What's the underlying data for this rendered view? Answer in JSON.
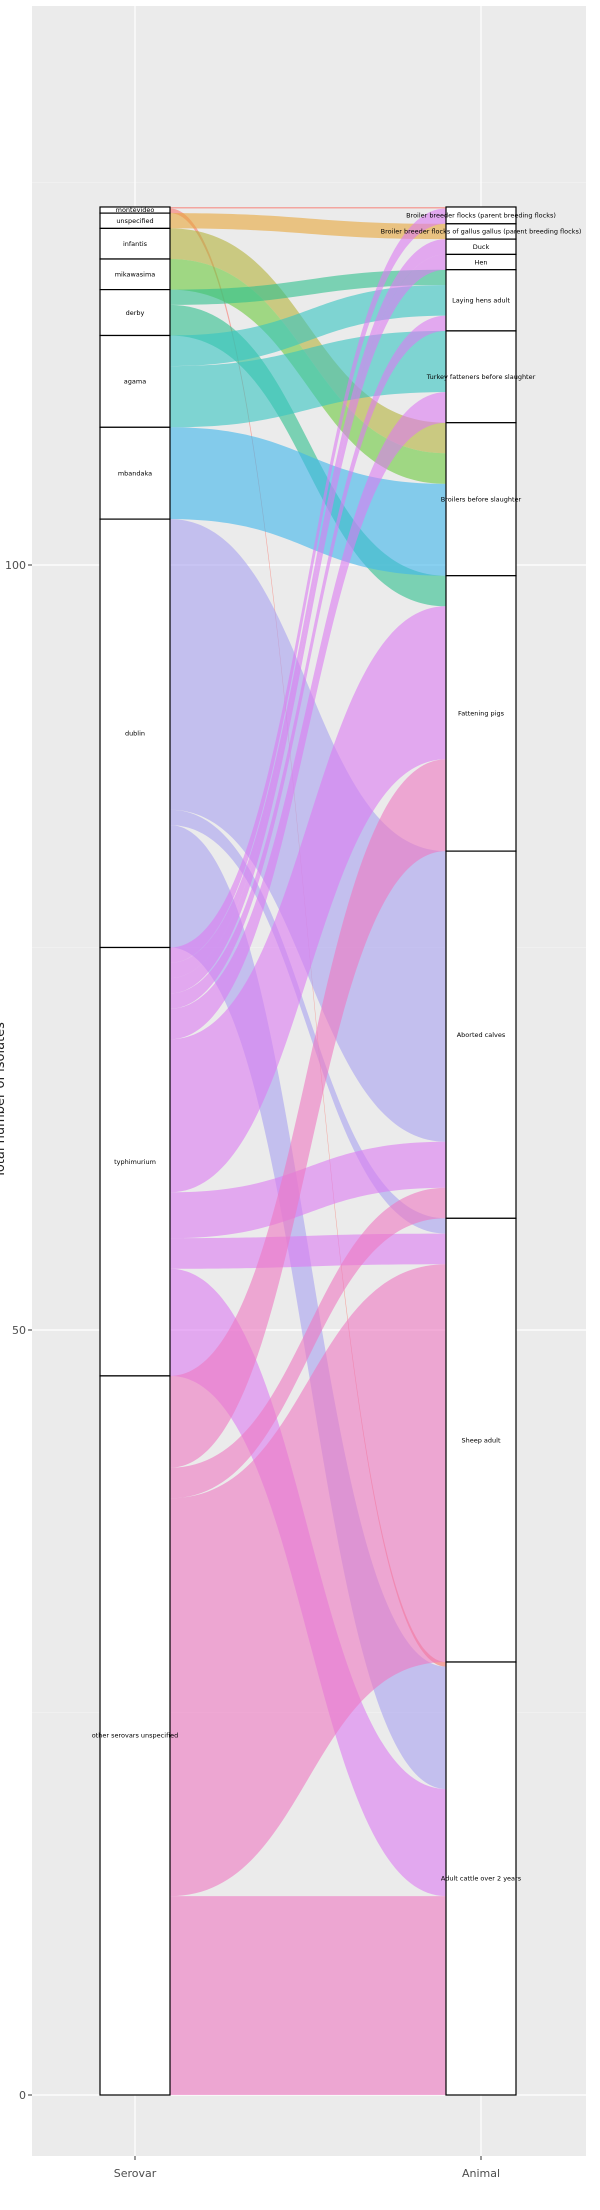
{
  "chart_data": {
    "type": "alluvial",
    "ylabel": "Total number of isolates",
    "xlabel": "",
    "ylim": [
      0,
      130
    ],
    "y_ticks": [
      0,
      50,
      100
    ],
    "x_axis_labels": [
      "Serovar",
      "Animal"
    ],
    "grid": true,
    "serovars": [
      "montevideo",
      "unspecified",
      "infantis",
      "mikawasima",
      "derby",
      "agama",
      "mbandaka",
      "dublin",
      "typhimurium",
      "other serovars unspecified"
    ],
    "animals": [
      "Broiler breeder flocks (parent breeding flocks)",
      "Broiler breeder flocks of gallus gallus (parent breeding flocks)",
      "Duck",
      "Hen",
      "Laying hens adult",
      "Turkey fatteners before slaughter",
      "Broilers before slaughter",
      "Fattening pigs",
      "Aborted calves",
      "Sheep adult",
      "Adult cattle over 2 years"
    ],
    "colors": {
      "montevideo": "#F8766D",
      "unspecified": "#E8A63A",
      "infantis": "#B4B33A",
      "mikawasima": "#6DC93E",
      "derby": "#2EC08E",
      "agama": "#36C5C2",
      "mbandaka": "#3DB5EB",
      "dublin": "#A8A2F0",
      "typhimurium": "#DC7CF2",
      "other serovars unspecified": "#EE78C2"
    },
    "flows": [
      {
        "from": "montevideo",
        "to": "Broiler breeder flocks (parent breeding flocks)",
        "value": 0.1
      },
      {
        "from": "montevideo",
        "to": "Adult cattle over 2 years",
        "value": 0.3
      },
      {
        "from": "unspecified",
        "to": "Broiler breeder flocks of gallus gallus (parent breeding flocks)",
        "value": 1
      },
      {
        "from": "infantis",
        "to": "Broilers before slaughter",
        "value": 2
      },
      {
        "from": "mikawasima",
        "to": "Broilers before slaughter",
        "value": 2
      },
      {
        "from": "derby",
        "to": "Laying hens adult",
        "value": 1
      },
      {
        "from": "derby",
        "to": "Fattening pigs",
        "value": 2
      },
      {
        "from": "agama",
        "to": "Laying hens adult",
        "value": 2
      },
      {
        "from": "agama",
        "to": "Turkey fatteners before slaughter",
        "value": 4
      },
      {
        "from": "mbandaka",
        "to": "Broilers before slaughter",
        "value": 6
      },
      {
        "from": "dublin",
        "to": "Aborted calves",
        "value": 19
      },
      {
        "from": "dublin",
        "to": "Sheep adult",
        "value": 1
      },
      {
        "from": "dublin",
        "to": "Adult cattle over 2 years",
        "value": 8
      },
      {
        "from": "typhimurium",
        "to": "Broiler breeder flocks (parent breeding flocks)",
        "value": 1
      },
      {
        "from": "typhimurium",
        "to": "Duck",
        "value": 1
      },
      {
        "from": "typhimurium",
        "to": "Hen",
        "value": 1
      },
      {
        "from": "typhimurium",
        "to": "Laying hens adult",
        "value": 1
      },
      {
        "from": "typhimurium",
        "to": "Turkey fatteners before slaughter",
        "value": 2
      },
      {
        "from": "typhimurium",
        "to": "Fattening pigs",
        "value": 10
      },
      {
        "from": "typhimurium",
        "to": "Aborted calves",
        "value": 3
      },
      {
        "from": "typhimurium",
        "to": "Sheep adult",
        "value": 2
      },
      {
        "from": "typhimurium",
        "to": "Adult cattle over 2 years",
        "value": 7
      },
      {
        "from": "other serovars unspecified",
        "to": "Fattening pigs",
        "value": 6
      },
      {
        "from": "other serovars unspecified",
        "to": "Aborted calves",
        "value": 2
      },
      {
        "from": "other serovars unspecified",
        "to": "Sheep adult",
        "value": 26
      },
      {
        "from": "other serovars unspecified",
        "to": "Adult cattle over 2 years",
        "value": 13
      }
    ]
  }
}
